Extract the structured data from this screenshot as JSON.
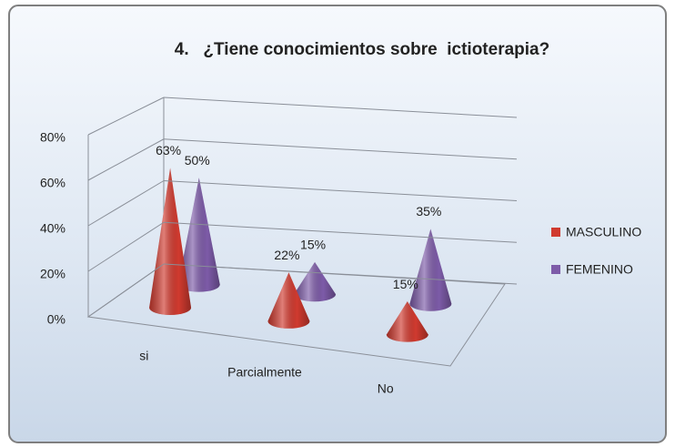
{
  "chart_data": {
    "type": "cone3d",
    "title": "4.   ¿Tiene conocimientos sobre  ictioterapia?",
    "categories": [
      "si",
      "Parcialmente",
      "No"
    ],
    "series": [
      {
        "name": "MASCULINO",
        "color": "#d03a2f",
        "values": [
          63,
          22,
          15
        ],
        "value_labels": [
          "63%",
          "22%",
          "15%"
        ]
      },
      {
        "name": "FEMENINO",
        "color": "#7d5ba8",
        "values": [
          50,
          15,
          35
        ],
        "value_labels": [
          "50%",
          "15%",
          "35%"
        ]
      }
    ],
    "ylim": [
      0,
      80
    ],
    "yticks": [
      {
        "value": 0,
        "label": "0%"
      },
      {
        "value": 20,
        "label": "20%"
      },
      {
        "value": 40,
        "label": "40%"
      },
      {
        "value": 60,
        "label": "60%"
      },
      {
        "value": 80,
        "label": "80%"
      }
    ],
    "grid": true,
    "legend": "right"
  }
}
